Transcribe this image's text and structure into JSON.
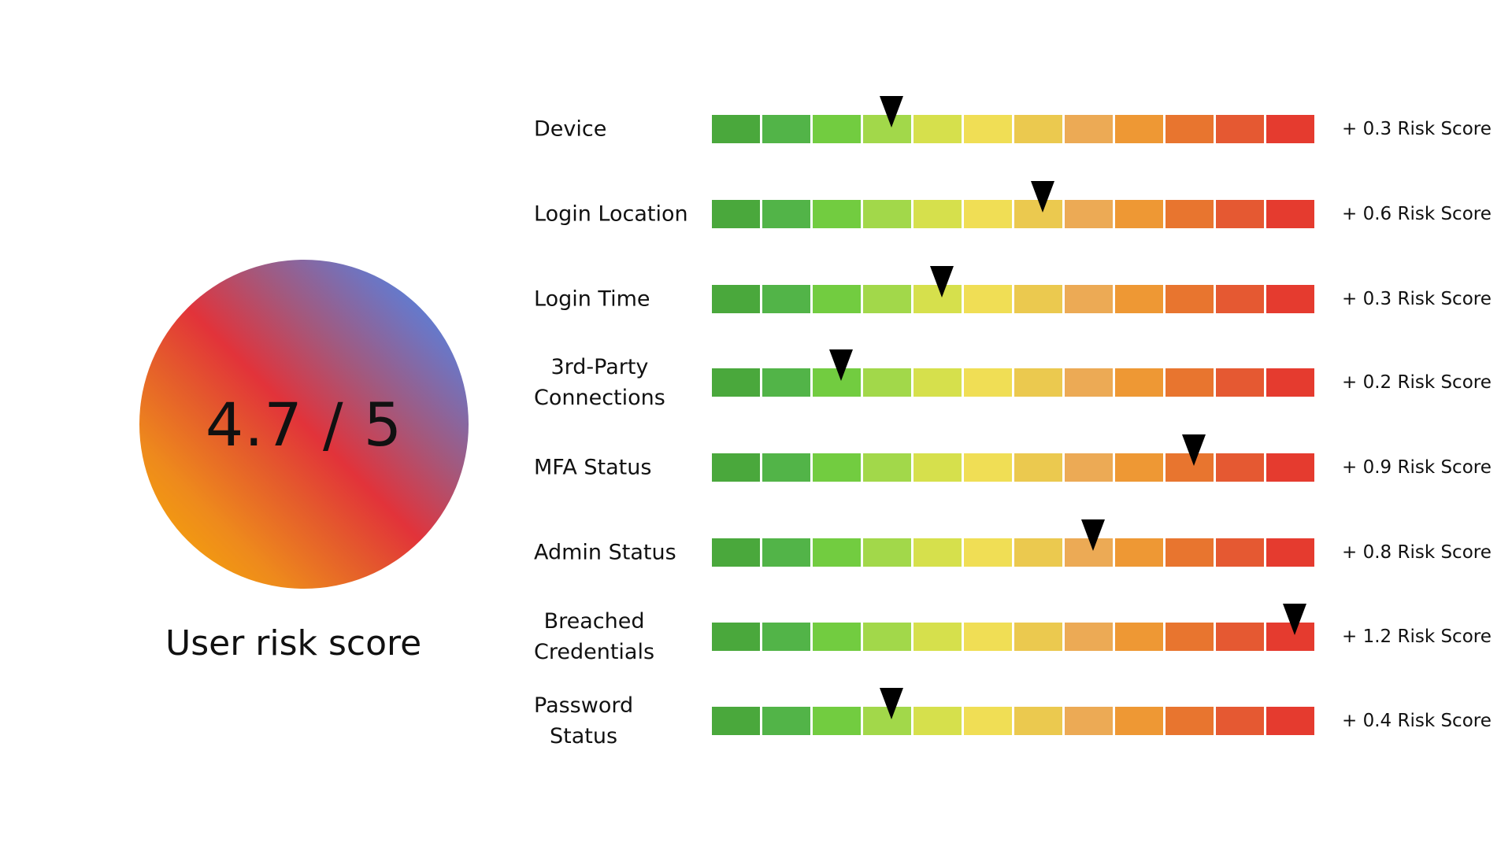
{
  "overall": {
    "score_text": "4.7 / 5",
    "score": 4.7,
    "max": 5,
    "title": "User risk score"
  },
  "scale_colors": [
    "#4aa83c",
    "#52b448",
    "#72cc40",
    "#a2d84a",
    "#d6e04c",
    "#f0de55",
    "#ebc94f",
    "#ecaa55",
    "#ee9834",
    "#e8752f",
    "#e55932",
    "#e53b2f"
  ],
  "factors": [
    {
      "label": "Device",
      "segment": 3,
      "risk": "+ 0.3 Risk Score"
    },
    {
      "label": "Login Location",
      "segment": 6,
      "risk": "+ 0.6 Risk Score"
    },
    {
      "label": "Login Time",
      "segment": 4,
      "risk": "+ 0.3 Risk Score"
    },
    {
      "label": "3rd-Party\nConnections",
      "segment": 2,
      "risk": "+ 0.2 Risk Score"
    },
    {
      "label": "MFA Status",
      "segment": 9,
      "risk": "+ 0.9 Risk Score"
    },
    {
      "label": "Admin Status",
      "segment": 7,
      "risk": "+ 0.8 Risk Score"
    },
    {
      "label": "Breached\nCredentials",
      "segment": 11,
      "risk": "+ 1.2 Risk Score"
    },
    {
      "label": "Password\nStatus",
      "segment": 3,
      "risk": "+ 0.4 Risk Score"
    }
  ]
}
